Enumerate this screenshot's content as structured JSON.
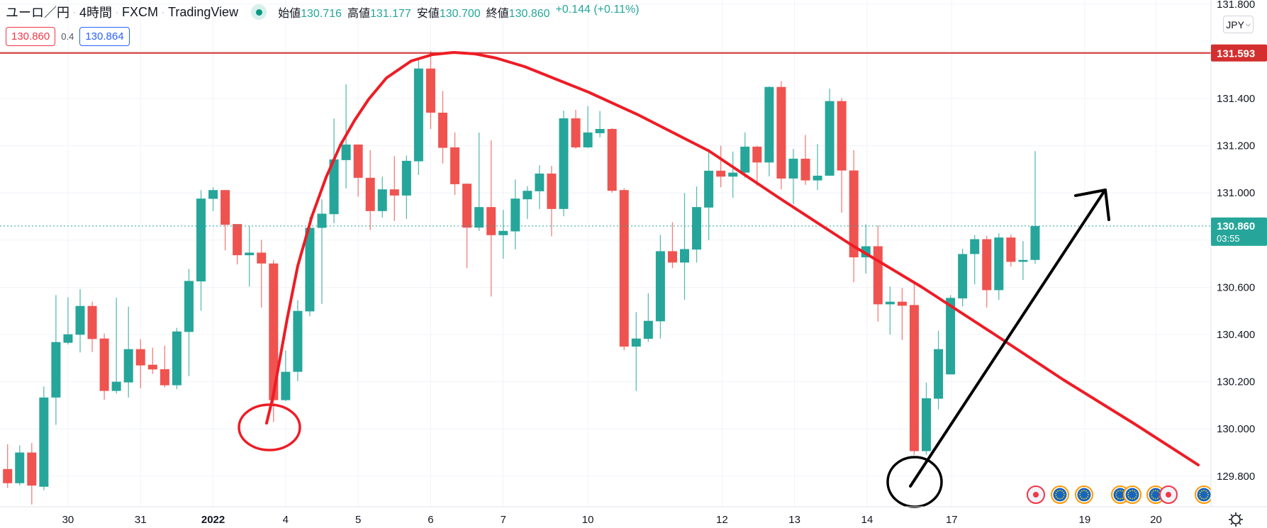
{
  "header": {
    "symbol": "ユーロ／円",
    "interval": "4時間",
    "broker": "FXCM",
    "platform": "TradingView",
    "sep": "·",
    "open_label": "始値",
    "open": "130.716",
    "high_label": "高値",
    "high": "131.177",
    "low_label": "安値",
    "low": "130.700",
    "close_label": "終値",
    "close": "130.860",
    "change": "+0.144 (+0.11%)"
  },
  "trade": {
    "sell_price": "130.860",
    "spread": "0.4",
    "buy_price": "130.864"
  },
  "currency_button": "JPY",
  "colors": {
    "up": "#26a69a",
    "down": "#ef5350",
    "hline": "#d32f2f",
    "drawing_red": "#ee1c25",
    "drawing_black": "#000000"
  },
  "chart_data": {
    "type": "candlestick",
    "title": "ユーロ／円 · 4時間 · FXCM",
    "ylim": [
      129.62,
      131.83
    ],
    "y_ticks": [
      "131.800",
      "131.400",
      "131.200",
      "131.000",
      "130.600",
      "130.400",
      "130.200",
      "130.000",
      "129.800"
    ],
    "y_tick_values": [
      131.8,
      131.4,
      131.2,
      131.0,
      130.6,
      130.4,
      130.2,
      130.0,
      129.8
    ],
    "x_ticks": [
      {
        "label": "30",
        "index": 5
      },
      {
        "label": "31",
        "index": 11
      },
      {
        "label": "2022",
        "index": 17
      },
      {
        "label": "4",
        "index": 23
      },
      {
        "label": "5",
        "index": 29
      },
      {
        "label": "6",
        "index": 35
      },
      {
        "label": "7",
        "index": 41
      },
      {
        "label": "10",
        "index": 48
      },
      {
        "label": "12",
        "index": 59.1
      },
      {
        "label": "13",
        "index": 65.1
      },
      {
        "label": "14",
        "index": 71.1
      },
      {
        "label": "17",
        "index": 78.1
      },
      {
        "label": "19",
        "index": 89.1
      },
      {
        "label": "20",
        "index": 95
      }
    ],
    "horizontal_line": {
      "value": 131.593,
      "label": "131.593"
    },
    "last_price": {
      "value": 130.86,
      "label": "130.860",
      "countdown": "03:55"
    },
    "candles_ohlc": [
      [
        129.83,
        129.935,
        129.75,
        129.77
      ],
      [
        129.77,
        129.93,
        129.76,
        129.9
      ],
      [
        129.9,
        129.94,
        129.68,
        129.76
      ],
      [
        129.755,
        130.18,
        129.74,
        130.133
      ],
      [
        130.133,
        130.567,
        130.017,
        130.368
      ],
      [
        130.365,
        130.558,
        130.358,
        130.401
      ],
      [
        130.399,
        130.592,
        130.324,
        130.521
      ],
      [
        130.521,
        130.539,
        130.326,
        130.381
      ],
      [
        130.383,
        130.404,
        130.124,
        130.161
      ],
      [
        130.161,
        130.556,
        130.15,
        130.2
      ],
      [
        130.197,
        130.518,
        130.133,
        130.338
      ],
      [
        130.338,
        130.38,
        130.172,
        130.269
      ],
      [
        130.272,
        130.344,
        130.233,
        130.252
      ],
      [
        130.253,
        130.353,
        130.176,
        130.185
      ],
      [
        130.185,
        130.428,
        130.168,
        130.413
      ],
      [
        130.411,
        130.678,
        130.224,
        130.627
      ],
      [
        130.625,
        131.012,
        130.501,
        130.976
      ],
      [
        130.975,
        131.024,
        130.923,
        131.012
      ],
      [
        131.012,
        131.012,
        130.757,
        130.865
      ],
      [
        130.868,
        130.868,
        130.697,
        130.736
      ],
      [
        130.736,
        130.859,
        130.603,
        130.747
      ],
      [
        130.747,
        130.801,
        130.514,
        130.701
      ],
      [
        130.701,
        130.716,
        130.029,
        130.122
      ],
      [
        130.122,
        130.332,
        130.118,
        130.242
      ],
      [
        130.242,
        130.545,
        130.202,
        130.5
      ],
      [
        130.498,
        130.898,
        130.477,
        130.852
      ],
      [
        130.852,
        130.973,
        130.53,
        130.912
      ],
      [
        130.91,
        131.315,
        130.872,
        131.142
      ],
      [
        131.139,
        131.46,
        131.019,
        131.205
      ],
      [
        131.205,
        131.205,
        130.984,
        131.064
      ],
      [
        131.064,
        131.181,
        130.842,
        130.923
      ],
      [
        130.923,
        131.069,
        130.895,
        131.015
      ],
      [
        131.015,
        131.156,
        130.881,
        130.989
      ],
      [
        130.989,
        131.158,
        130.89,
        131.136
      ],
      [
        131.134,
        131.571,
        131.076,
        131.527
      ],
      [
        131.527,
        131.602,
        131.271,
        131.34
      ],
      [
        131.34,
        131.432,
        131.125,
        131.191
      ],
      [
        131.193,
        131.256,
        130.992,
        131.037
      ],
      [
        131.039,
        131.04,
        130.681,
        130.853
      ],
      [
        130.853,
        131.256,
        130.839,
        130.94
      ],
      [
        130.94,
        131.223,
        130.561,
        130.821
      ],
      [
        130.821,
        130.928,
        130.721,
        130.839
      ],
      [
        130.837,
        131.057,
        130.761,
        130.976
      ],
      [
        130.973,
        131.028,
        130.89,
        131.009
      ],
      [
        131.007,
        131.117,
        130.932,
        131.082
      ],
      [
        131.082,
        131.115,
        130.816,
        130.932
      ],
      [
        130.932,
        131.349,
        130.901,
        131.316
      ],
      [
        131.316,
        131.352,
        131.187,
        131.193
      ],
      [
        131.193,
        131.368,
        131.19,
        131.256
      ],
      [
        131.253,
        131.347,
        131.235,
        131.271
      ],
      [
        131.271,
        131.275,
        131.001,
        131.009
      ],
      [
        131.012,
        131.02,
        130.333,
        130.349
      ],
      [
        130.349,
        130.495,
        130.161,
        130.383
      ],
      [
        130.382,
        130.575,
        130.369,
        130.458
      ],
      [
        130.456,
        130.822,
        130.383,
        130.753
      ],
      [
        130.753,
        130.876,
        130.681,
        130.705
      ],
      [
        130.705,
        131.0,
        130.547,
        130.762
      ],
      [
        130.76,
        131.027,
        130.705,
        130.94
      ],
      [
        130.938,
        131.186,
        130.8,
        131.094
      ],
      [
        131.094,
        131.2,
        131.024,
        131.069
      ],
      [
        131.069,
        131.175,
        130.979,
        131.086
      ],
      [
        131.086,
        131.256,
        131.065,
        131.196
      ],
      [
        131.196,
        131.2,
        131.031,
        131.129
      ],
      [
        131.129,
        131.451,
        131.07,
        131.449
      ],
      [
        131.449,
        131.474,
        131.015,
        131.061
      ],
      [
        131.061,
        131.186,
        130.953,
        131.145
      ],
      [
        131.145,
        131.246,
        131.034,
        131.053
      ],
      [
        131.053,
        131.207,
        131.012,
        131.073
      ],
      [
        131.073,
        131.442,
        131.073,
        131.389
      ],
      [
        131.389,
        131.402,
        130.916,
        131.095
      ],
      [
        131.095,
        131.181,
        130.622,
        130.727
      ],
      [
        130.727,
        130.867,
        130.658,
        130.774
      ],
      [
        130.774,
        130.862,
        130.455,
        130.528
      ],
      [
        130.528,
        130.603,
        130.4,
        130.539
      ],
      [
        130.539,
        130.597,
        130.377,
        130.522
      ],
      [
        130.525,
        130.614,
        129.89,
        129.906
      ],
      [
        129.906,
        130.196,
        129.89,
        130.13
      ],
      [
        130.128,
        130.416,
        130.083,
        130.338
      ],
      [
        130.231,
        130.567,
        130.231,
        130.555
      ],
      [
        130.553,
        130.764,
        130.519,
        130.741
      ],
      [
        130.741,
        130.822,
        130.613,
        130.804
      ],
      [
        130.804,
        130.818,
        130.514,
        130.588
      ],
      [
        130.588,
        130.829,
        130.547,
        130.811
      ],
      [
        130.811,
        130.824,
        130.688,
        130.708
      ],
      [
        130.708,
        130.796,
        130.631,
        130.716
      ],
      [
        130.716,
        131.177,
        130.7,
        130.86
      ]
    ],
    "events": [
      "us-event",
      "eu-event",
      "eu-event",
      "eu-event",
      "eu-event",
      "eu-event",
      "us-event",
      "eu-event"
    ]
  }
}
